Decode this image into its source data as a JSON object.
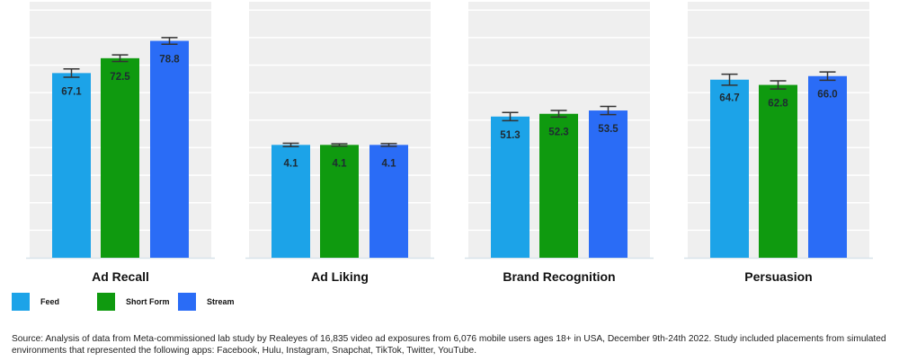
{
  "chart_data": {
    "type": "bar",
    "groups": [
      {
        "title": "Ad Recall",
        "ylim": [
          0,
          93
        ],
        "values": [
          67.1,
          72.5,
          78.8
        ],
        "labels": [
          "67.1",
          "72.5",
          "78.8"
        ],
        "error": [
          1.5,
          1.2,
          1.2
        ]
      },
      {
        "title": "Ad Liking",
        "ylim": [
          0,
          9.3
        ],
        "values": [
          4.1,
          4.1,
          4.1
        ],
        "labels": [
          "4.1",
          "4.1",
          "4.1"
        ],
        "error": [
          0.06,
          0.04,
          0.05
        ]
      },
      {
        "title": "Brand Recognition",
        "ylim": [
          0,
          93
        ],
        "values": [
          51.3,
          52.3,
          53.5
        ],
        "labels": [
          "51.3",
          "52.3",
          "53.5"
        ],
        "error": [
          1.5,
          1.2,
          1.5
        ]
      },
      {
        "title": "Persuasion",
        "ylim": [
          0,
          93
        ],
        "values": [
          64.7,
          62.8,
          66.0
        ],
        "labels": [
          "64.7",
          "62.8",
          "66.0"
        ],
        "error": [
          2.0,
          1.5,
          1.5
        ]
      }
    ],
    "series": [
      {
        "name": "Feed",
        "color": "#1ca3e8"
      },
      {
        "name": "Short Form",
        "color": "#0f9a0f"
      },
      {
        "name": "Stream",
        "color": "#2a6cf6"
      }
    ],
    "grid": true,
    "legend_position": "bottom-left"
  },
  "source": "Source: Analysis of data from Meta-commissioned lab study by Realeyes of 16,835 video ad exposures from 6,076 mobile users ages 18+ in USA, December 9th-24th 2022. Study included placements from simulated environments that represented the following apps: Facebook, Hulu, Instagram, Snapchat, TikTok, Twitter, YouTube."
}
